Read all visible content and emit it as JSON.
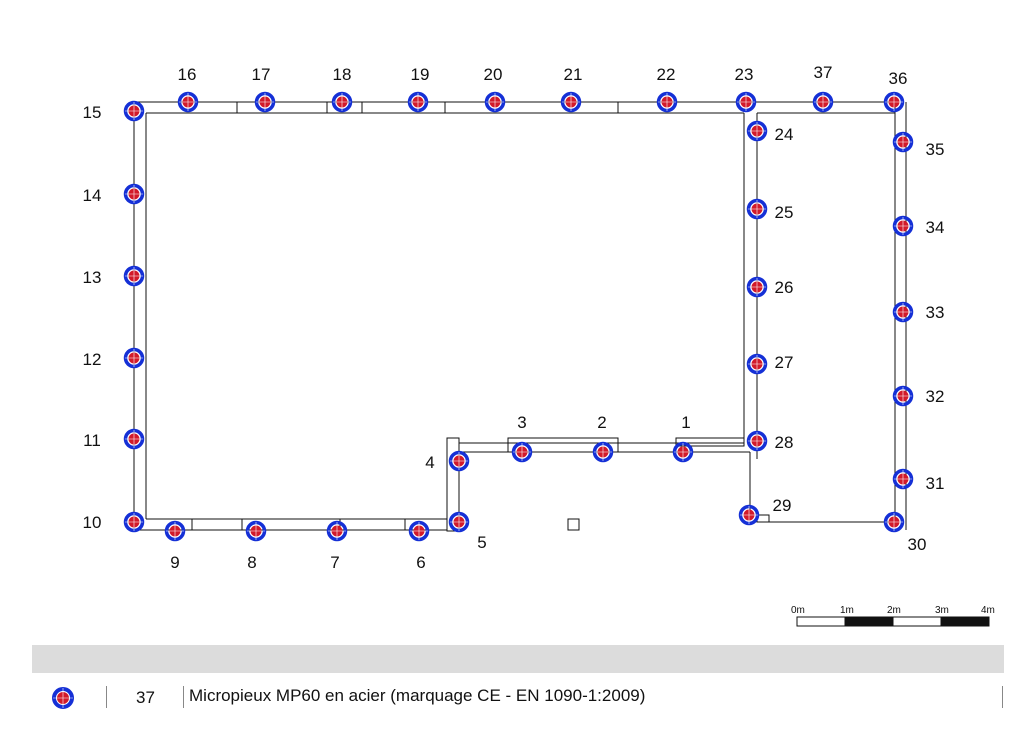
{
  "legend": {
    "count": "37",
    "description": "Micropieux MP60 en acier (marquage CE - EN 1090-1:2009)",
    "colors": {
      "ring": "#1530d6",
      "core": "#d21a2a"
    }
  },
  "scale_bar": {
    "unit_labels": [
      "0m",
      "1m",
      "2m",
      "3m",
      "4m"
    ]
  },
  "piles": [
    {
      "label": "1"
    },
    {
      "label": "2"
    },
    {
      "label": "3"
    },
    {
      "label": "4"
    },
    {
      "label": "5"
    },
    {
      "label": "6"
    },
    {
      "label": "7"
    },
    {
      "label": "8"
    },
    {
      "label": "9"
    },
    {
      "label": "10"
    },
    {
      "label": "11"
    },
    {
      "label": "12"
    },
    {
      "label": "13"
    },
    {
      "label": "14"
    },
    {
      "label": "15"
    },
    {
      "label": "16"
    },
    {
      "label": "17"
    },
    {
      "label": "18"
    },
    {
      "label": "19"
    },
    {
      "label": "20"
    },
    {
      "label": "21"
    },
    {
      "label": "22"
    },
    {
      "label": "23"
    },
    {
      "label": "24"
    },
    {
      "label": "25"
    },
    {
      "label": "26"
    },
    {
      "label": "27"
    },
    {
      "label": "28"
    },
    {
      "label": "29"
    },
    {
      "label": "30"
    },
    {
      "label": "31"
    },
    {
      "label": "32"
    },
    {
      "label": "33"
    },
    {
      "label": "34"
    },
    {
      "label": "35"
    },
    {
      "label": "36"
    },
    {
      "label": "37"
    }
  ]
}
